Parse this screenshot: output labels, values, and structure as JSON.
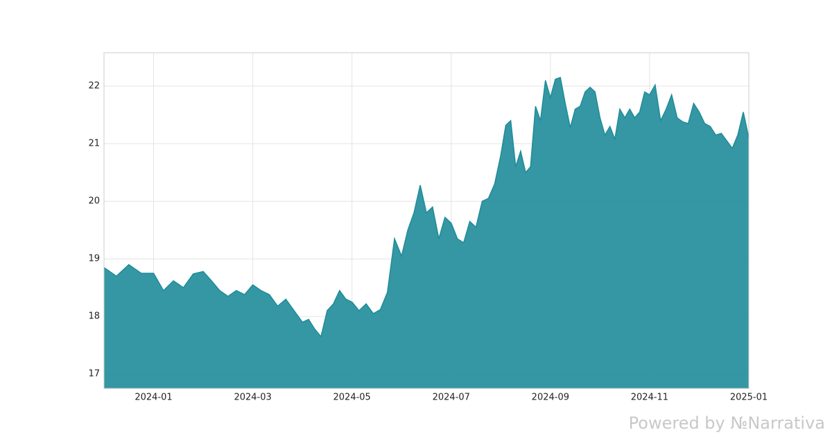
{
  "chart_data": {
    "type": "area",
    "color": "#1f8c99",
    "x": [
      "2023-12",
      "2023-12",
      "2023-12",
      "2023-12",
      "2024-01",
      "2024-01",
      "2024-01",
      "2024-01",
      "2024-01",
      "2024-02",
      "2024-02",
      "2024-02",
      "2024-02",
      "2024-02",
      "2024-02",
      "2024-03",
      "2024-03",
      "2024-03",
      "2024-03",
      "2024-03",
      "2024-03",
      "2024-04",
      "2024-04",
      "2024-04",
      "2024-04",
      "2024-04",
      "2024-04",
      "2024-04",
      "2024-04",
      "2024-05",
      "2024-05",
      "2024-05",
      "2024-05",
      "2024-05",
      "2024-05",
      "2024-05",
      "2024-06",
      "2024-06",
      "2024-06",
      "2024-06",
      "2024-06",
      "2024-06",
      "2024-06",
      "2024-06",
      "2024-07",
      "2024-07",
      "2024-07",
      "2024-07",
      "2024-07",
      "2024-07",
      "2024-07",
      "2024-07",
      "2024-08",
      "2024-08",
      "2024-08",
      "2024-08",
      "2024-08",
      "2024-08",
      "2024-08",
      "2024-08",
      "2024-08",
      "2024-08",
      "2024-09",
      "2024-09",
      "2024-09",
      "2024-09",
      "2024-09",
      "2024-09",
      "2024-09",
      "2024-09",
      "2024-09",
      "2024-09",
      "2024-10",
      "2024-10",
      "2024-10",
      "2024-10",
      "2024-10",
      "2024-10",
      "2024-10",
      "2024-10",
      "2024-10",
      "2024-10",
      "2024-11",
      "2024-11",
      "2024-11",
      "2024-11",
      "2024-11",
      "2024-11",
      "2024-11",
      "2024-11",
      "2024-11",
      "2024-12",
      "2024-12",
      "2024-12",
      "2024-12",
      "2024-12",
      "2024-12",
      "2024-12",
      "2024-12",
      "2024-12",
      "2025-01"
    ],
    "values": [
      18.85,
      18.7,
      18.9,
      18.75,
      18.75,
      18.45,
      18.62,
      18.5,
      18.74,
      18.78,
      18.62,
      18.45,
      18.35,
      18.45,
      18.38,
      18.55,
      18.45,
      18.38,
      18.18,
      18.3,
      18.1,
      17.9,
      17.95,
      17.78,
      17.65,
      18.1,
      18.22,
      18.45,
      18.3,
      18.25,
      18.1,
      18.22,
      18.05,
      18.12,
      18.42,
      19.35,
      19.05,
      19.5,
      19.8,
      20.28,
      19.8,
      19.9,
      19.35,
      19.72,
      19.62,
      19.35,
      19.28,
      19.65,
      19.55,
      20.0,
      20.05,
      20.3,
      20.8,
      21.32,
      21.4,
      20.6,
      20.87,
      20.5,
      20.6,
      21.65,
      21.4,
      22.1,
      21.8,
      22.12,
      22.15,
      21.7,
      21.28,
      21.6,
      21.65,
      21.9,
      21.98,
      21.9,
      21.45,
      21.15,
      21.3,
      21.08,
      21.6,
      21.45,
      21.6,
      21.45,
      21.55,
      21.9,
      21.85,
      22.02,
      21.4,
      21.6,
      21.85,
      21.45,
      21.38,
      21.35,
      21.7,
      21.55,
      21.35,
      21.3,
      21.15,
      21.18,
      21.05,
      20.92,
      21.15,
      21.55,
      21.1
    ],
    "ylim": [
      16.75,
      22.58
    ],
    "yticks": [
      17,
      18,
      19,
      20,
      21,
      22
    ],
    "xticks": [
      "2024-01",
      "2024-03",
      "2024-05",
      "2024-07",
      "2024-09",
      "2024-11",
      "2025-01"
    ],
    "grid": true
  },
  "watermark": "Powered by №Narrativa"
}
